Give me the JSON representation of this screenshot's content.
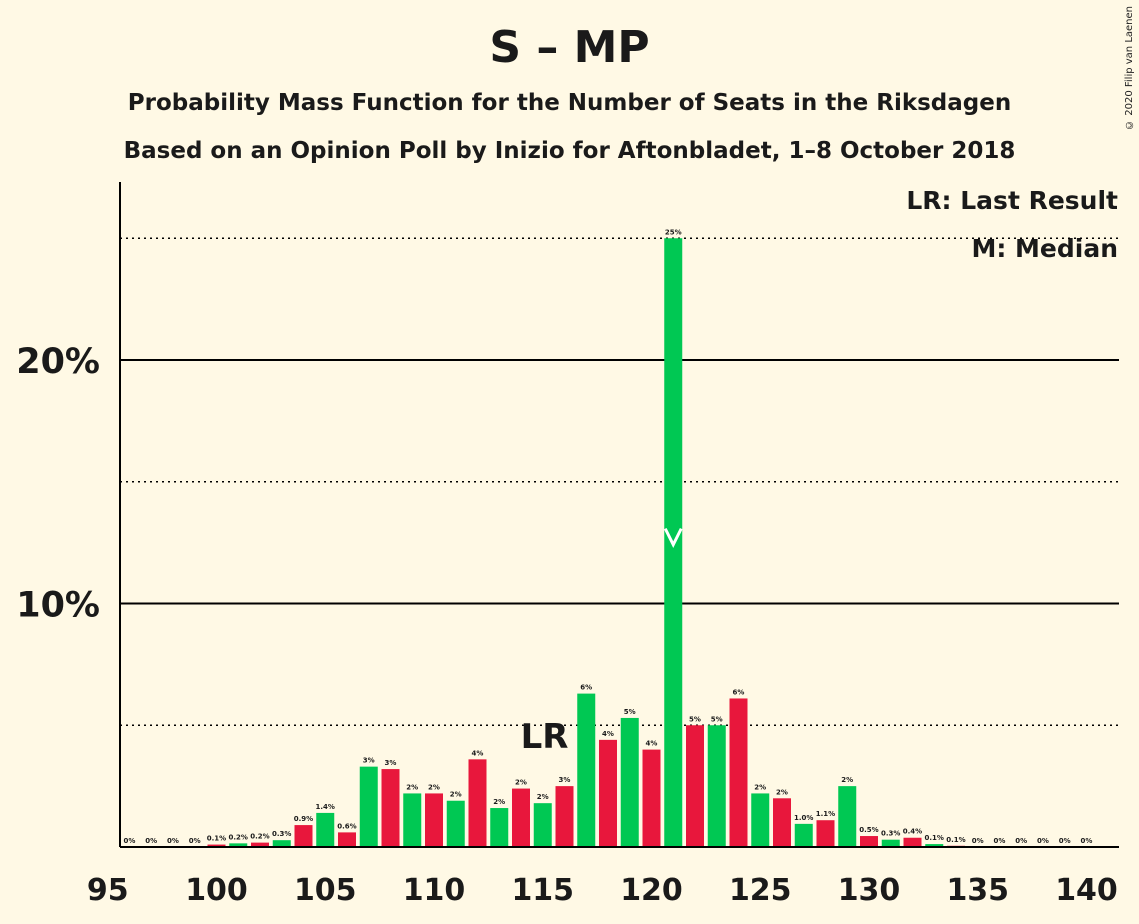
{
  "chart_data": {
    "type": "bar",
    "title": "S – MP",
    "subtitle": "Probability Mass Function for the Number of Seats in the Riksdagen",
    "subtitle2": "Based on an Opinion Poll by Inizio for Aftonbladet, 1–8 October 2018",
    "copyright": "© 2020 Filip van Laenen",
    "legend": [
      "LR: Last Result",
      "M: Median"
    ],
    "legend_placement": "top-right",
    "xlim": [
      95,
      140
    ],
    "ylim": [
      0,
      27
    ],
    "x_ticks": [
      95,
      100,
      105,
      110,
      115,
      120,
      125,
      130,
      135,
      140
    ],
    "y_ticks_labeled": [
      {
        "value": 10,
        "label": "10%"
      },
      {
        "value": 20,
        "label": "20%"
      }
    ],
    "y_gridlines_dotted": [
      5,
      15,
      25
    ],
    "last_result": {
      "seat": 116,
      "label": "LR"
    },
    "median": {
      "seat": 121,
      "label": "M"
    },
    "colors": {
      "green": "#00c853",
      "red": "#e8173c",
      "background": "#fff9e5"
    },
    "bars": [
      {
        "seat": 96,
        "value": 0,
        "label": "0%"
      },
      {
        "seat": 97,
        "value": 0,
        "label": "0%"
      },
      {
        "seat": 98,
        "value": 0,
        "label": "0%"
      },
      {
        "seat": 99,
        "value": 0,
        "label": "0%"
      },
      {
        "seat": 100,
        "value": 0.1,
        "label": "0.1%"
      },
      {
        "seat": 101,
        "value": 0.15,
        "label": "0.2%"
      },
      {
        "seat": 102,
        "value": 0.18,
        "label": "0.2%"
      },
      {
        "seat": 103,
        "value": 0.28,
        "label": "0.3%"
      },
      {
        "seat": 104,
        "value": 0.9,
        "label": "0.9%"
      },
      {
        "seat": 105,
        "value": 1.4,
        "label": "1.4%"
      },
      {
        "seat": 106,
        "value": 0.6,
        "label": "0.6%"
      },
      {
        "seat": 107,
        "value": 3.3,
        "label": "3%"
      },
      {
        "seat": 108,
        "value": 3.2,
        "label": "3%"
      },
      {
        "seat": 109,
        "value": 2.2,
        "label": "2%"
      },
      {
        "seat": 110,
        "value": 2.2,
        "label": "2%"
      },
      {
        "seat": 111,
        "value": 1.9,
        "label": "2%"
      },
      {
        "seat": 112,
        "value": 3.6,
        "label": "4%"
      },
      {
        "seat": 113,
        "value": 1.6,
        "label": "2%"
      },
      {
        "seat": 114,
        "value": 2.4,
        "label": "2%"
      },
      {
        "seat": 115,
        "value": 1.8,
        "label": "2%"
      },
      {
        "seat": 116,
        "value": 2.5,
        "label": "3%"
      },
      {
        "seat": 117,
        "value": 6.3,
        "label": "6%"
      },
      {
        "seat": 118,
        "value": 4.4,
        "label": "4%"
      },
      {
        "seat": 119,
        "value": 5.3,
        "label": "5%"
      },
      {
        "seat": 120,
        "value": 4.0,
        "label": "4%"
      },
      {
        "seat": 121,
        "value": 25.0,
        "label": "25%"
      },
      {
        "seat": 122,
        "value": 5.0,
        "label": "5%"
      },
      {
        "seat": 123,
        "value": 5.0,
        "label": "5%"
      },
      {
        "seat": 124,
        "value": 6.1,
        "label": "6%"
      },
      {
        "seat": 125,
        "value": 2.2,
        "label": "2%"
      },
      {
        "seat": 126,
        "value": 2.0,
        "label": "2%"
      },
      {
        "seat": 127,
        "value": 0.95,
        "label": "1.0%"
      },
      {
        "seat": 128,
        "value": 1.1,
        "label": "1.1%"
      },
      {
        "seat": 129,
        "value": 2.5,
        "label": "2%"
      },
      {
        "seat": 130,
        "value": 0.45,
        "label": "0.5%"
      },
      {
        "seat": 131,
        "value": 0.3,
        "label": "0.3%"
      },
      {
        "seat": 132,
        "value": 0.38,
        "label": "0.4%"
      },
      {
        "seat": 133,
        "value": 0.12,
        "label": "0.1%"
      },
      {
        "seat": 134,
        "value": 0.05,
        "label": "0.1%"
      },
      {
        "seat": 135,
        "value": 0,
        "label": "0%"
      },
      {
        "seat": 136,
        "value": 0,
        "label": "0%"
      },
      {
        "seat": 137,
        "value": 0,
        "label": "0%"
      },
      {
        "seat": 138,
        "value": 0,
        "label": "0%"
      },
      {
        "seat": 139,
        "value": 0,
        "label": "0%"
      },
      {
        "seat": 140,
        "value": 0,
        "label": "0%"
      }
    ]
  }
}
